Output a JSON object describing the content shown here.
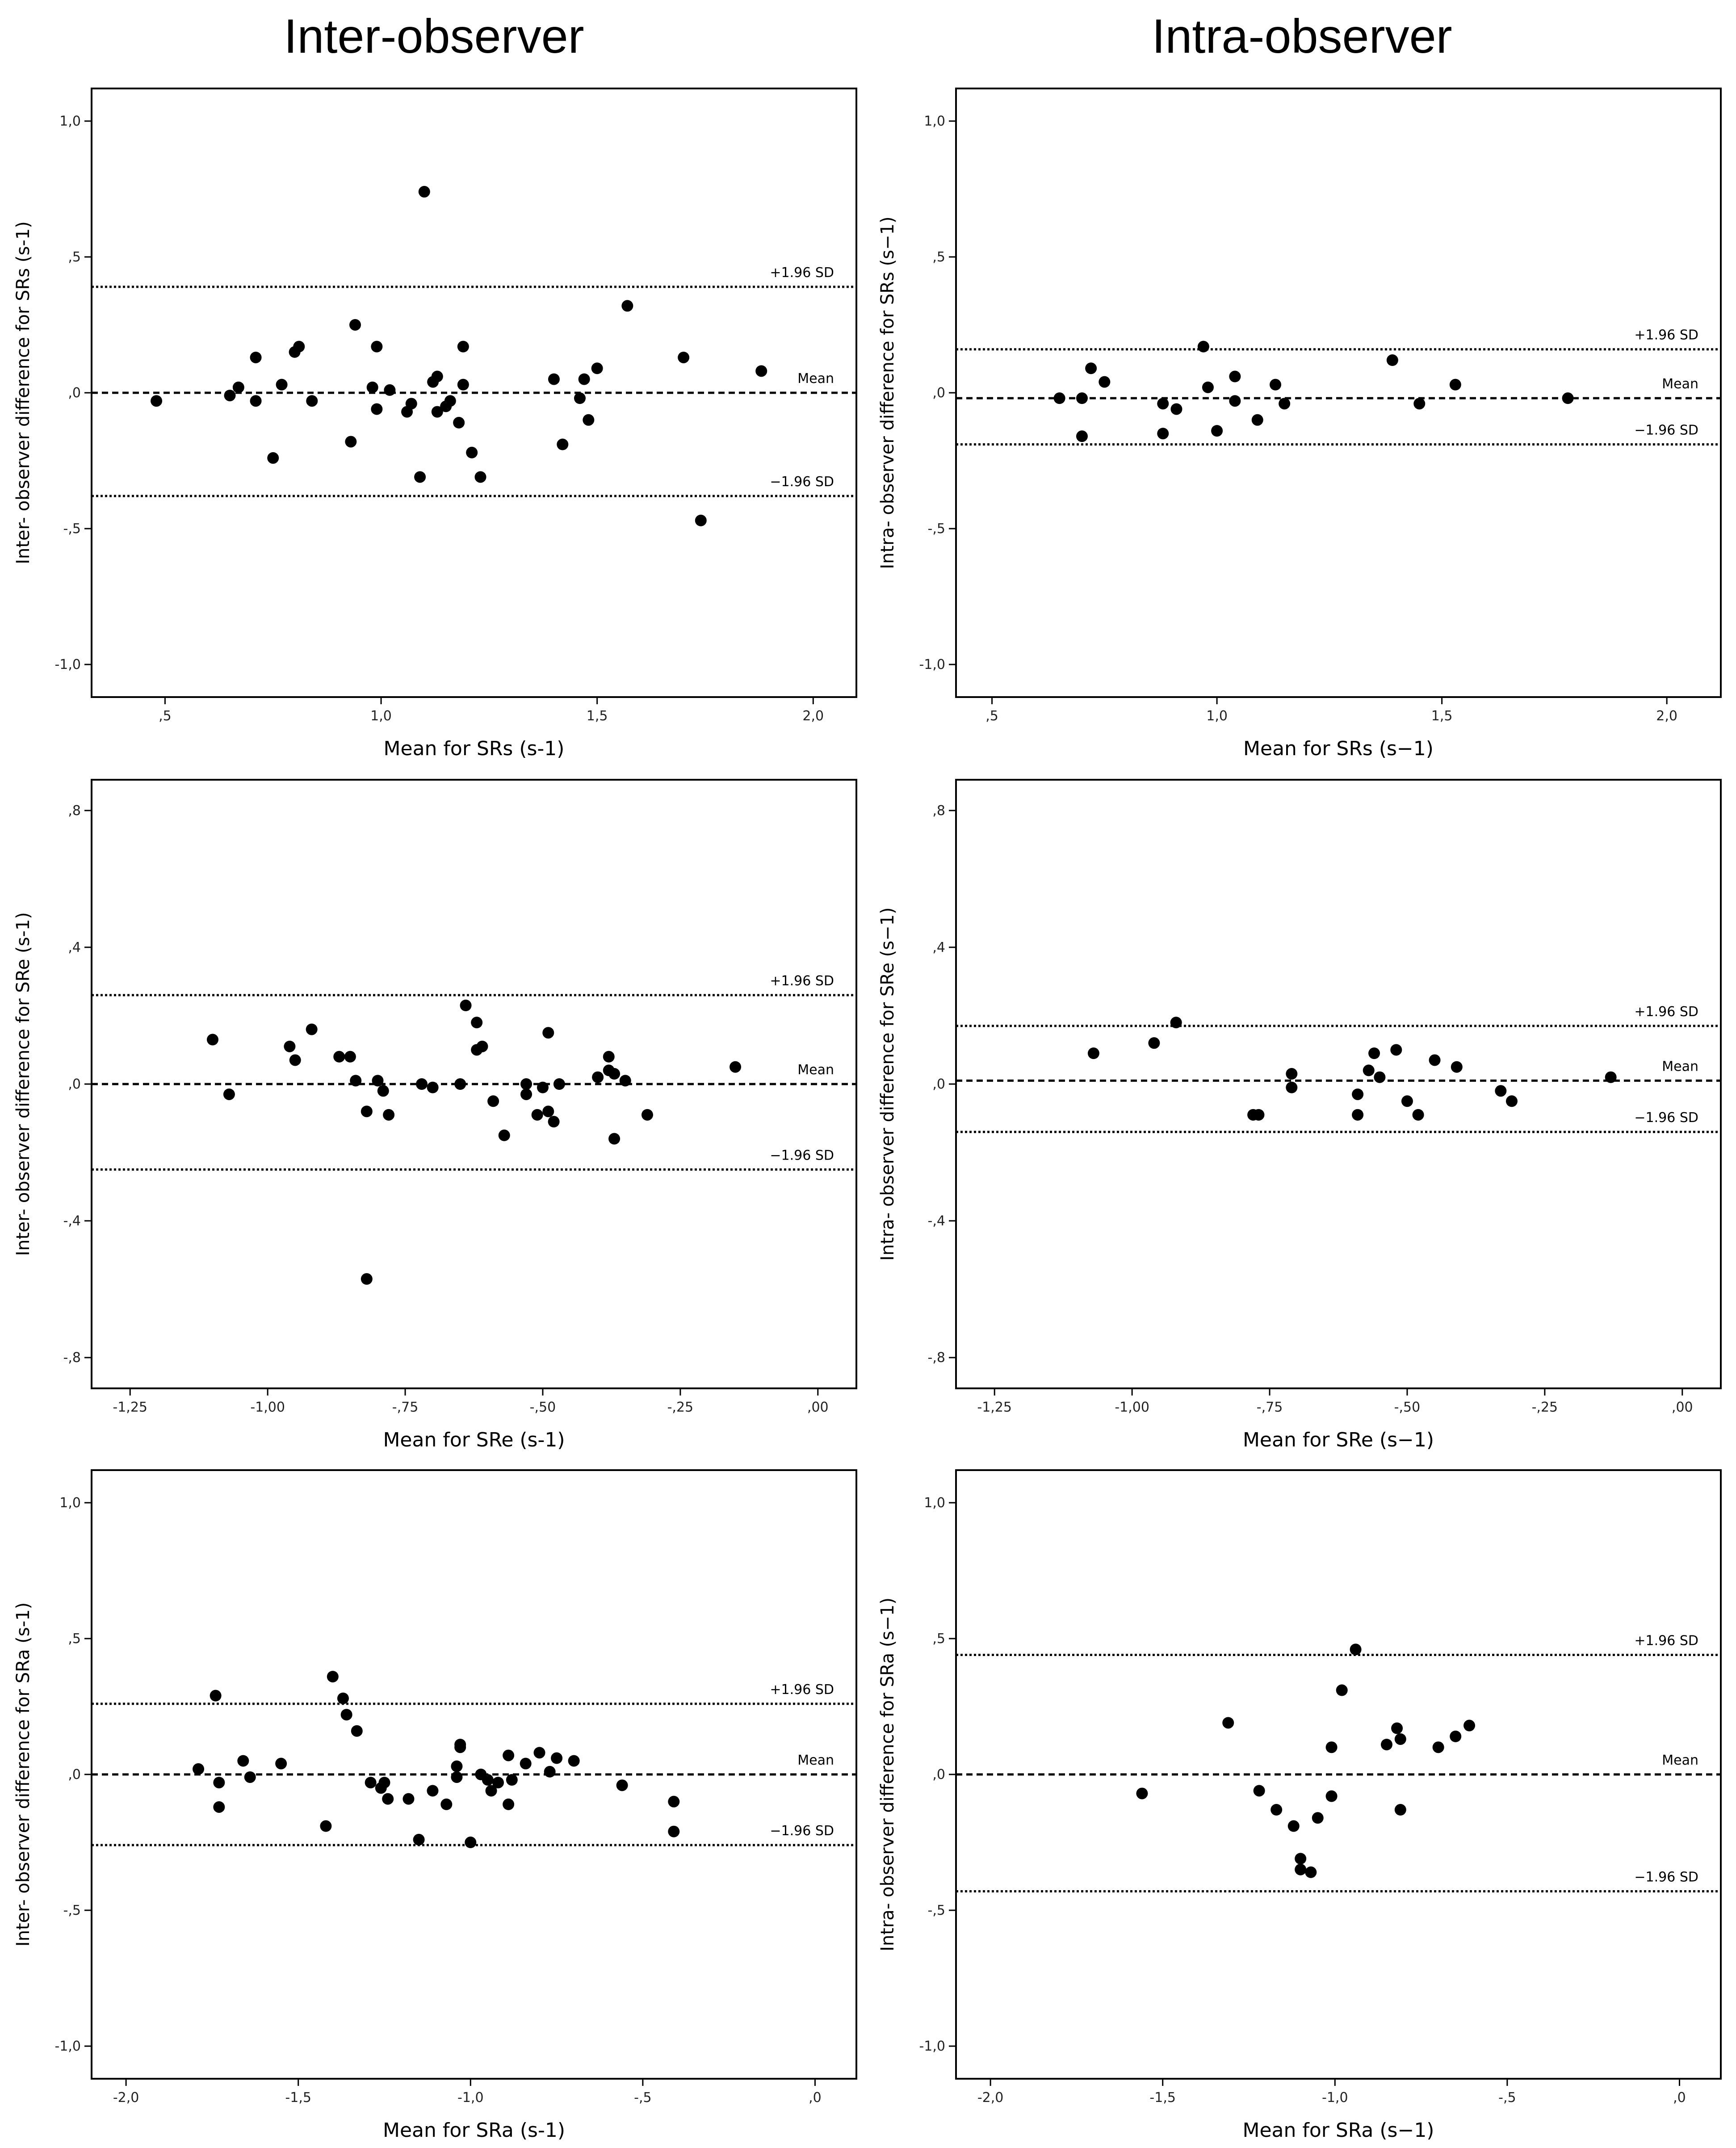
{
  "column_titles": {
    "left": "Inter-observer",
    "right": "Intra-observer"
  },
  "chart_data": [
    {
      "id": "inter-srs",
      "type": "scatter",
      "title": "Inter-observer",
      "xlabel": "Mean for SRs (s-1)",
      "ylabel": "Inter- observer difference for SRs (s-1)",
      "xlim": [
        0.33,
        2.1
      ],
      "ylim": [
        -1.12,
        1.12
      ],
      "xticks": [
        {
          "v": 0.5,
          "label": ",5"
        },
        {
          "v": 1.0,
          "label": "1,0"
        },
        {
          "v": 1.5,
          "label": "1,5"
        },
        {
          "v": 2.0,
          "label": "2,0"
        }
      ],
      "yticks": [
        {
          "v": 1.0,
          "label": "1,0"
        },
        {
          "v": 0.5,
          "label": ",5"
        },
        {
          "v": 0.0,
          "label": ",0"
        },
        {
          "v": -0.5,
          "label": "-,5"
        },
        {
          "v": -1.0,
          "label": "-1,0"
        }
      ],
      "reference_lines": [
        {
          "name": "upper",
          "value": 0.39,
          "label": "+1.96 SD",
          "style": "dotted"
        },
        {
          "name": "mean",
          "value": 0.0,
          "label": "Mean",
          "style": "dashed"
        },
        {
          "name": "lower",
          "value": -0.38,
          "label": "−1.96 SD",
          "style": "dotted"
        }
      ],
      "points": [
        [
          0.48,
          -0.03
        ],
        [
          0.65,
          -0.01
        ],
        [
          0.67,
          0.02
        ],
        [
          0.71,
          0.13
        ],
        [
          0.71,
          -0.03
        ],
        [
          0.75,
          -0.24
        ],
        [
          0.77,
          0.03
        ],
        [
          0.8,
          0.15
        ],
        [
          0.81,
          0.17
        ],
        [
          0.84,
          -0.03
        ],
        [
          0.93,
          -0.18
        ],
        [
          0.94,
          0.25
        ],
        [
          0.98,
          0.02
        ],
        [
          0.99,
          -0.06
        ],
        [
          0.99,
          0.17
        ],
        [
          1.02,
          0.01
        ],
        [
          1.06,
          -0.07
        ],
        [
          1.07,
          -0.04
        ],
        [
          1.09,
          -0.31
        ],
        [
          1.1,
          0.74
        ],
        [
          1.12,
          0.04
        ],
        [
          1.13,
          -0.07
        ],
        [
          1.13,
          0.06
        ],
        [
          1.15,
          -0.05
        ],
        [
          1.16,
          -0.03
        ],
        [
          1.18,
          -0.11
        ],
        [
          1.19,
          0.03
        ],
        [
          1.19,
          0.17
        ],
        [
          1.21,
          -0.22
        ],
        [
          1.23,
          -0.31
        ],
        [
          1.4,
          0.05
        ],
        [
          1.42,
          -0.19
        ],
        [
          1.46,
          -0.02
        ],
        [
          1.47,
          0.05
        ],
        [
          1.48,
          -0.1
        ],
        [
          1.5,
          0.09
        ],
        [
          1.57,
          0.32
        ],
        [
          1.7,
          0.13
        ],
        [
          1.74,
          -0.47
        ],
        [
          1.88,
          0.08
        ]
      ]
    },
    {
      "id": "intra-srs",
      "type": "scatter",
      "title": "Intra-observer",
      "xlabel": "Mean for SRs (s−1)",
      "ylabel": "Intra- observer difference for SRs (s−1)",
      "xlim": [
        0.42,
        2.12
      ],
      "ylim": [
        -1.12,
        1.12
      ],
      "xticks": [
        {
          "v": 0.5,
          "label": ",5"
        },
        {
          "v": 1.0,
          "label": "1,0"
        },
        {
          "v": 1.5,
          "label": "1,5"
        },
        {
          "v": 2.0,
          "label": "2,0"
        }
      ],
      "yticks": [
        {
          "v": 1.0,
          "label": "1,0"
        },
        {
          "v": 0.5,
          "label": ",5"
        },
        {
          "v": 0.0,
          "label": ",0"
        },
        {
          "v": -0.5,
          "label": "-,5"
        },
        {
          "v": -1.0,
          "label": "-1,0"
        }
      ],
      "reference_lines": [
        {
          "name": "upper",
          "value": 0.16,
          "label": "+1.96 SD",
          "style": "dotted"
        },
        {
          "name": "mean",
          "value": -0.02,
          "label": "Mean",
          "style": "dashed"
        },
        {
          "name": "lower",
          "value": -0.19,
          "label": "−1.96 SD",
          "style": "dotted"
        }
      ],
      "points": [
        [
          0.65,
          -0.02
        ],
        [
          0.7,
          -0.02
        ],
        [
          0.7,
          -0.16
        ],
        [
          0.72,
          0.09
        ],
        [
          0.75,
          0.04
        ],
        [
          0.88,
          -0.04
        ],
        [
          0.88,
          -0.15
        ],
        [
          0.91,
          -0.06
        ],
        [
          0.97,
          0.17
        ],
        [
          0.98,
          0.02
        ],
        [
          1.0,
          -0.14
        ],
        [
          1.04,
          0.06
        ],
        [
          1.04,
          -0.03
        ],
        [
          1.09,
          -0.1
        ],
        [
          1.13,
          0.03
        ],
        [
          1.15,
          -0.04
        ],
        [
          1.39,
          0.12
        ],
        [
          1.45,
          -0.04
        ],
        [
          1.53,
          0.03
        ],
        [
          1.78,
          -0.02
        ]
      ]
    },
    {
      "id": "inter-sre",
      "type": "scatter",
      "title": "Inter-observer",
      "xlabel": "Mean for SRe (s-1)",
      "ylabel": "Inter- observer difference for SRe (s-1)",
      "xlim": [
        -1.32,
        0.07
      ],
      "ylim": [
        -0.89,
        0.89
      ],
      "xticks": [
        {
          "v": -1.25,
          "label": "-1,25"
        },
        {
          "v": -1.0,
          "label": "-1,00"
        },
        {
          "v": -0.75,
          "label": "-,75"
        },
        {
          "v": -0.5,
          "label": "-,50"
        },
        {
          "v": -0.25,
          "label": "-,25"
        },
        {
          "v": 0.0,
          "label": ",00"
        }
      ],
      "yticks": [
        {
          "v": 0.8,
          "label": ",8"
        },
        {
          "v": 0.4,
          "label": ",4"
        },
        {
          "v": 0.0,
          "label": ",0"
        },
        {
          "v": -0.4,
          "label": "-,4"
        },
        {
          "v": -0.8,
          "label": "-,8"
        }
      ],
      "reference_lines": [
        {
          "name": "upper",
          "value": 0.26,
          "label": "+1.96 SD",
          "style": "dotted"
        },
        {
          "name": "mean",
          "value": 0.0,
          "label": "Mean",
          "style": "dashed"
        },
        {
          "name": "lower",
          "value": -0.25,
          "label": "−1.96 SD",
          "style": "dotted"
        }
      ],
      "points": [
        [
          -1.1,
          0.13
        ],
        [
          -1.07,
          -0.03
        ],
        [
          -0.96,
          0.11
        ],
        [
          -0.95,
          0.07
        ],
        [
          -0.92,
          0.16
        ],
        [
          -0.87,
          0.08
        ],
        [
          -0.85,
          0.08
        ],
        [
          -0.84,
          0.01
        ],
        [
          -0.82,
          -0.08
        ],
        [
          -0.82,
          -0.57
        ],
        [
          -0.8,
          0.01
        ],
        [
          -0.79,
          -0.02
        ],
        [
          -0.78,
          -0.09
        ],
        [
          -0.72,
          0.0
        ],
        [
          -0.7,
          -0.01
        ],
        [
          -0.65,
          0.0
        ],
        [
          -0.64,
          0.23
        ],
        [
          -0.62,
          0.18
        ],
        [
          -0.62,
          0.1
        ],
        [
          -0.61,
          0.11
        ],
        [
          -0.59,
          -0.05
        ],
        [
          -0.57,
          -0.15
        ],
        [
          -0.53,
          0.0
        ],
        [
          -0.53,
          -0.03
        ],
        [
          -0.51,
          -0.09
        ],
        [
          -0.5,
          -0.01
        ],
        [
          -0.49,
          0.15
        ],
        [
          -0.49,
          -0.08
        ],
        [
          -0.48,
          -0.11
        ],
        [
          -0.47,
          0.0
        ],
        [
          -0.4,
          0.02
        ],
        [
          -0.38,
          0.08
        ],
        [
          -0.38,
          0.04
        ],
        [
          -0.37,
          -0.16
        ],
        [
          -0.37,
          0.03
        ],
        [
          -0.35,
          0.01
        ],
        [
          -0.31,
          -0.09
        ],
        [
          -0.15,
          0.05
        ]
      ]
    },
    {
      "id": "intra-sre",
      "type": "scatter",
      "title": "Intra-observer",
      "xlabel": "Mean for SRe (s−1)",
      "ylabel": "Intra- observer difference for SRe (s−1)",
      "xlim": [
        -1.32,
        0.07
      ],
      "ylim": [
        -0.89,
        0.89
      ],
      "xticks": [
        {
          "v": -1.25,
          "label": "-1,25"
        },
        {
          "v": -1.0,
          "label": "-1,00"
        },
        {
          "v": -0.75,
          "label": "-,75"
        },
        {
          "v": -0.5,
          "label": "-,50"
        },
        {
          "v": -0.25,
          "label": "-,25"
        },
        {
          "v": 0.0,
          "label": ",00"
        }
      ],
      "yticks": [
        {
          "v": 0.8,
          "label": ",8"
        },
        {
          "v": 0.4,
          "label": ",4"
        },
        {
          "v": 0.0,
          "label": ",0"
        },
        {
          "v": -0.4,
          "label": "-,4"
        },
        {
          "v": -0.8,
          "label": "-,8"
        }
      ],
      "reference_lines": [
        {
          "name": "upper",
          "value": 0.17,
          "label": "+1.96 SD",
          "style": "dotted"
        },
        {
          "name": "mean",
          "value": 0.01,
          "label": "Mean",
          "style": "dashed"
        },
        {
          "name": "lower",
          "value": -0.14,
          "label": "−1.96 SD",
          "style": "dotted"
        }
      ],
      "points": [
        [
          -1.07,
          0.09
        ],
        [
          -0.96,
          0.12
        ],
        [
          -0.92,
          0.18
        ],
        [
          -0.78,
          -0.09
        ],
        [
          -0.77,
          -0.09
        ],
        [
          -0.71,
          0.03
        ],
        [
          -0.71,
          -0.01
        ],
        [
          -0.59,
          -0.03
        ],
        [
          -0.59,
          -0.09
        ],
        [
          -0.57,
          0.04
        ],
        [
          -0.56,
          0.09
        ],
        [
          -0.55,
          0.02
        ],
        [
          -0.52,
          0.1
        ],
        [
          -0.5,
          -0.05
        ],
        [
          -0.48,
          -0.09
        ],
        [
          -0.45,
          0.07
        ],
        [
          -0.41,
          0.05
        ],
        [
          -0.33,
          -0.02
        ],
        [
          -0.31,
          -0.05
        ],
        [
          -0.13,
          0.02
        ]
      ]
    },
    {
      "id": "inter-sra",
      "type": "scatter",
      "title": "Inter-observer",
      "xlabel": "Mean for SRa (s-1)",
      "ylabel": "Inter- observer difference for SRa (s-1)",
      "xlim": [
        -2.1,
        0.12
      ],
      "ylim": [
        -1.12,
        1.12
      ],
      "xticks": [
        {
          "v": -2.0,
          "label": "-2,0"
        },
        {
          "v": -1.5,
          "label": "-1,5"
        },
        {
          "v": -1.0,
          "label": "-1,0"
        },
        {
          "v": -0.5,
          "label": "-,5"
        },
        {
          "v": 0.0,
          "label": ",0"
        }
      ],
      "yticks": [
        {
          "v": 1.0,
          "label": "1,0"
        },
        {
          "v": 0.5,
          "label": ",5"
        },
        {
          "v": 0.0,
          "label": ",0"
        },
        {
          "v": -0.5,
          "label": "-,5"
        },
        {
          "v": -1.0,
          "label": "-1,0"
        }
      ],
      "reference_lines": [
        {
          "name": "upper",
          "value": 0.26,
          "label": "+1.96 SD",
          "style": "dotted"
        },
        {
          "name": "mean",
          "value": 0.0,
          "label": "Mean",
          "style": "dashed"
        },
        {
          "name": "lower",
          "value": -0.26,
          "label": "−1.96 SD",
          "style": "dotted"
        }
      ],
      "points": [
        [
          -1.79,
          0.02
        ],
        [
          -1.74,
          0.29
        ],
        [
          -1.73,
          -0.03
        ],
        [
          -1.73,
          -0.12
        ],
        [
          -1.66,
          0.05
        ],
        [
          -1.64,
          -0.01
        ],
        [
          -1.55,
          0.04
        ],
        [
          -1.42,
          -0.19
        ],
        [
          -1.4,
          0.36
        ],
        [
          -1.37,
          0.28
        ],
        [
          -1.36,
          0.22
        ],
        [
          -1.33,
          0.16
        ],
        [
          -1.29,
          -0.03
        ],
        [
          -1.26,
          -0.05
        ],
        [
          -1.25,
          -0.03
        ],
        [
          -1.24,
          -0.09
        ],
        [
          -1.18,
          -0.09
        ],
        [
          -1.15,
          -0.24
        ],
        [
          -1.11,
          -0.06
        ],
        [
          -1.07,
          -0.11
        ],
        [
          -1.04,
          0.03
        ],
        [
          -1.04,
          -0.01
        ],
        [
          -1.03,
          0.11
        ],
        [
          -1.03,
          0.1
        ],
        [
          -1.0,
          -0.25
        ],
        [
          -0.97,
          0.0
        ],
        [
          -0.95,
          -0.02
        ],
        [
          -0.94,
          -0.06
        ],
        [
          -0.92,
          -0.03
        ],
        [
          -0.89,
          0.07
        ],
        [
          -0.89,
          -0.11
        ],
        [
          -0.88,
          -0.02
        ],
        [
          -0.84,
          0.04
        ],
        [
          -0.8,
          0.08
        ],
        [
          -0.77,
          0.01
        ],
        [
          -0.75,
          0.06
        ],
        [
          -0.7,
          0.05
        ],
        [
          -0.56,
          -0.04
        ],
        [
          -0.41,
          -0.1
        ],
        [
          -0.41,
          -0.21
        ]
      ]
    },
    {
      "id": "intra-sra",
      "type": "scatter",
      "title": "Intra-observer",
      "xlabel": "Mean for SRa (s−1)",
      "ylabel": "Intra- observer difference for SRa (s−1)",
      "xlim": [
        -2.1,
        0.12
      ],
      "ylim": [
        -1.12,
        1.12
      ],
      "xticks": [
        {
          "v": -2.0,
          "label": "-2,0"
        },
        {
          "v": -1.5,
          "label": "-1,5"
        },
        {
          "v": -1.0,
          "label": "-1,0"
        },
        {
          "v": -0.5,
          "label": "-,5"
        },
        {
          "v": 0.0,
          "label": ",0"
        }
      ],
      "yticks": [
        {
          "v": 1.0,
          "label": "1,0"
        },
        {
          "v": 0.5,
          "label": ",5"
        },
        {
          "v": 0.0,
          "label": ",0"
        },
        {
          "v": -0.5,
          "label": "-,5"
        },
        {
          "v": -1.0,
          "label": "-1,0"
        }
      ],
      "reference_lines": [
        {
          "name": "upper",
          "value": 0.44,
          "label": "+1.96 SD",
          "style": "dotted"
        },
        {
          "name": "mean",
          "value": 0.0,
          "label": "Mean",
          "style": "dashed"
        },
        {
          "name": "lower",
          "value": -0.43,
          "label": "−1.96 SD",
          "style": "dotted"
        }
      ],
      "points": [
        [
          -1.56,
          -0.07
        ],
        [
          -1.31,
          0.19
        ],
        [
          -1.22,
          -0.06
        ],
        [
          -1.17,
          -0.13
        ],
        [
          -1.12,
          -0.19
        ],
        [
          -1.1,
          -0.31
        ],
        [
          -1.1,
          -0.35
        ],
        [
          -1.07,
          -0.36
        ],
        [
          -1.05,
          -0.16
        ],
        [
          -1.01,
          -0.08
        ],
        [
          -1.01,
          0.1
        ],
        [
          -0.98,
          0.31
        ],
        [
          -0.94,
          0.46
        ],
        [
          -0.85,
          0.11
        ],
        [
          -0.82,
          0.17
        ],
        [
          -0.81,
          0.13
        ],
        [
          -0.81,
          -0.13
        ],
        [
          -0.7,
          0.1
        ],
        [
          -0.65,
          0.14
        ],
        [
          -0.61,
          0.18
        ]
      ]
    }
  ]
}
